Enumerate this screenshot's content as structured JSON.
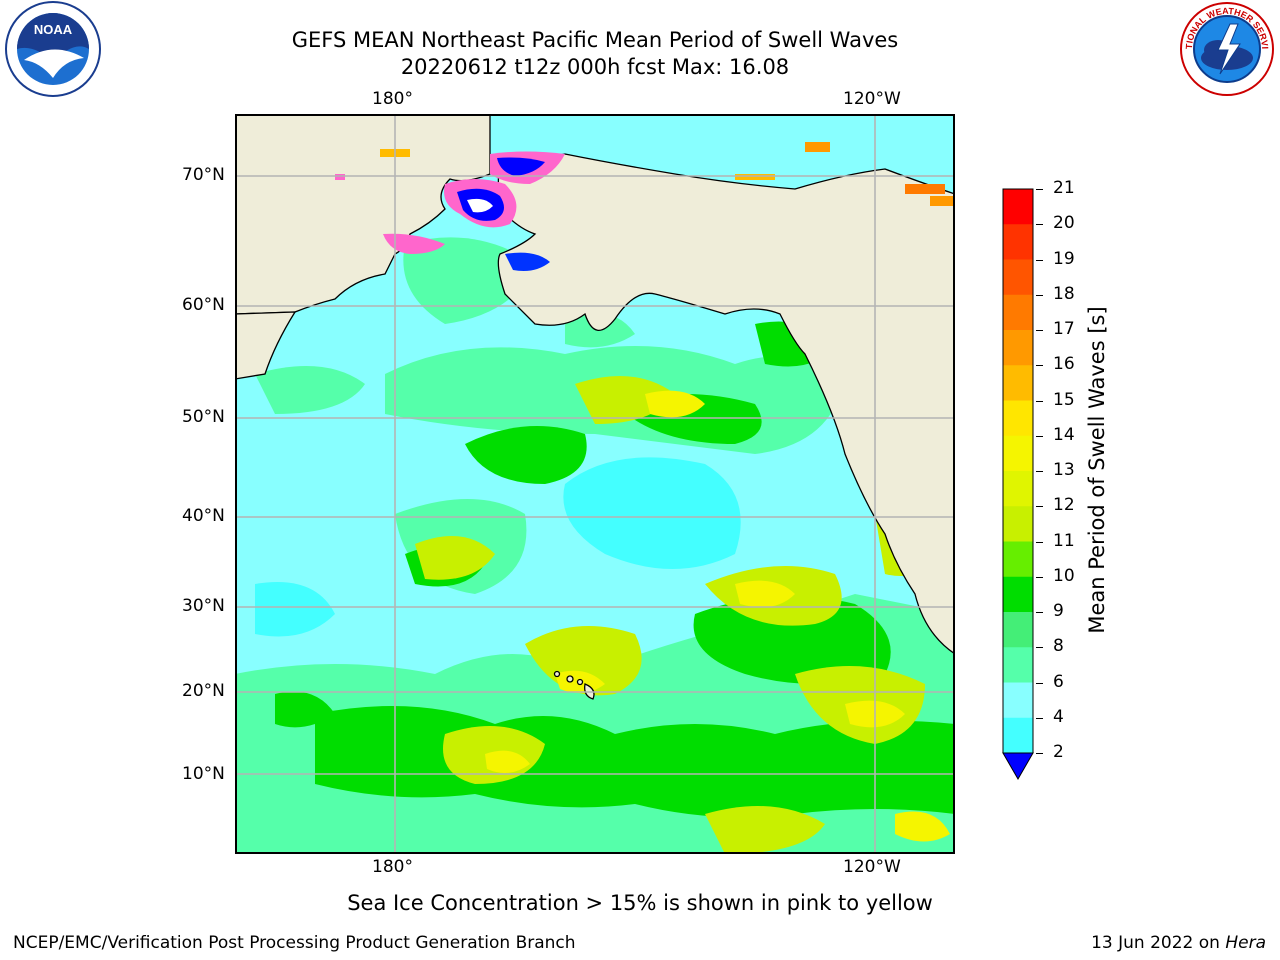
{
  "title": {
    "line1": "GEFS MEAN Northeast Pacific Mean Period of Swell Waves",
    "line2": "20220612 t12z 000h fcst   Max: 16.08"
  },
  "axes": {
    "lon_labels": [
      "180°",
      "120°W"
    ],
    "lat_labels": [
      "70°N",
      "60°N",
      "50°N",
      "40°N",
      "30°N",
      "20°N",
      "10°N"
    ]
  },
  "colorbar": {
    "title": "Mean Period of Swell Waves [s]",
    "ticks": [
      "21",
      "20",
      "19",
      "18",
      "17",
      "16",
      "15",
      "14",
      "13",
      "12",
      "11",
      "10",
      "9",
      "8",
      "6",
      "4",
      "2"
    ],
    "colors": [
      "#ff0000",
      "#ff3300",
      "#ff5500",
      "#ff7a00",
      "#ff9900",
      "#ffbb00",
      "#ffe600",
      "#f5f500",
      "#e0f500",
      "#c8f000",
      "#66ee00",
      "#00dd00",
      "#44ee77",
      "#55ffaa",
      "#88ffff",
      "#44ffff",
      "#00ffff",
      "#0077ff"
    ],
    "under_color": "#0000ff"
  },
  "note": "Sea Ice Concentration > 15% is shown in pink to yellow",
  "footer": {
    "left": "NCEP/EMC/Verification Post Processing Product Generation Branch",
    "right_prefix": "13 Jun 2022 on ",
    "right_host": "Hera"
  },
  "logos": {
    "noaa": "NOAA",
    "nws": "NATIONAL WEATHER SERVICE"
  },
  "colors": {
    "land": "#efedd9",
    "ocean_base": "#88ffff",
    "grid": "#b4b4b4"
  }
}
